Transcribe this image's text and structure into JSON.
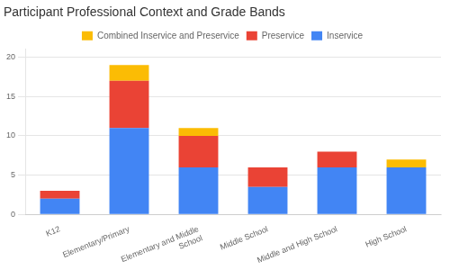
{
  "chart_data": {
    "type": "bar",
    "title": "Participant Professional Context and Grade Bands",
    "categories": [
      "K12",
      "Elementary/Primary",
      "Elementary and Middle\nSchool",
      "Middle School",
      "Middle and High School",
      "High School"
    ],
    "series": [
      {
        "name": "Inservice",
        "color": "#4285F4",
        "values": [
          2,
          11,
          6,
          3.5,
          6,
          6
        ]
      },
      {
        "name": "Preservice",
        "color": "#EA4335",
        "values": [
          1,
          6,
          4,
          2.5,
          2,
          0
        ]
      },
      {
        "name": "Combined Inservice and Preservice",
        "color": "#FBBC04",
        "values": [
          0,
          2,
          1,
          0,
          0,
          1
        ]
      }
    ],
    "stacked": true,
    "ylim": [
      0,
      21
    ],
    "yticks": [
      0,
      5,
      10,
      15,
      20
    ],
    "grid": true,
    "legend": "top"
  }
}
